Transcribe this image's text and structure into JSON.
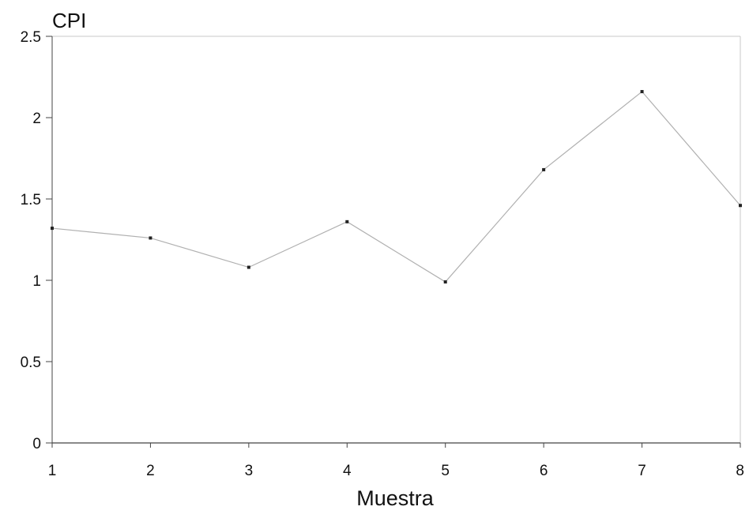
{
  "chart_data": {
    "type": "line",
    "ylabel": "CPI",
    "xlabel": "Muestra",
    "x": [
      1,
      2,
      3,
      4,
      5,
      6,
      7,
      8
    ],
    "x_tick_labels": [
      "1",
      "2",
      "3",
      "4",
      "5",
      "6",
      "7",
      "8"
    ],
    "y_ticks": [
      0,
      0.5,
      1,
      1.5,
      2,
      2.5
    ],
    "y_tick_labels": [
      "0",
      "0.5",
      "1",
      "1.5",
      "2",
      "2.5"
    ],
    "xlim": [
      1,
      8
    ],
    "ylim": [
      0,
      2.5
    ],
    "grid": false,
    "legend": "none",
    "series": [
      {
        "values": [
          1.32,
          1.26,
          1.08,
          1.36,
          0.99,
          1.68,
          2.16,
          1.46
        ]
      }
    ],
    "colors": {
      "line": "#b0b0b0",
      "marker": "#222222",
      "axis": "#444444",
      "frame": "#c8c8c8"
    }
  }
}
